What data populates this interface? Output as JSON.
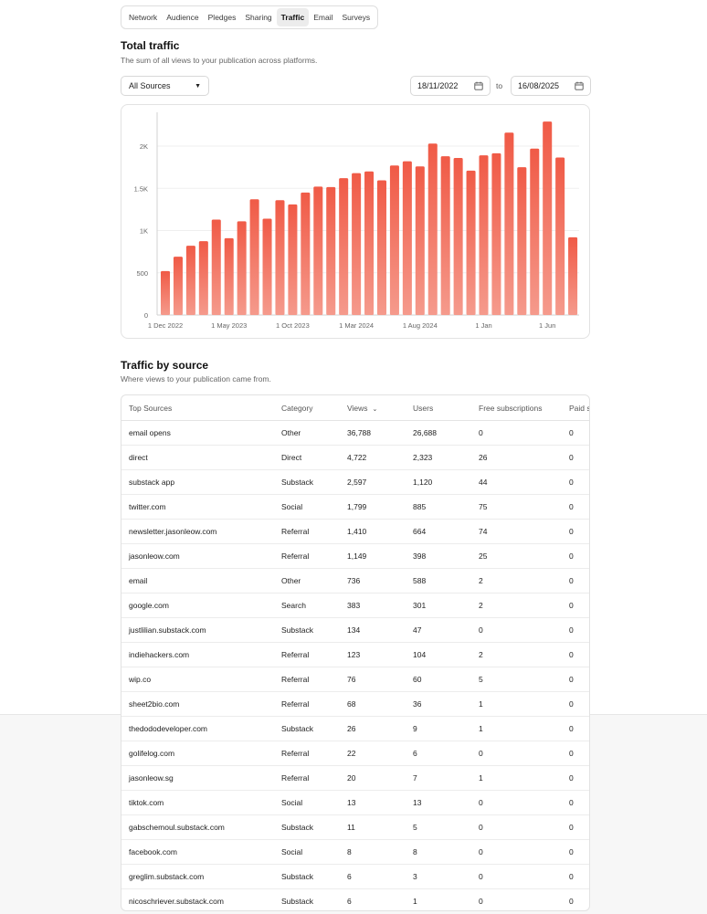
{
  "tabs": [
    {
      "label": "Network",
      "active": false
    },
    {
      "label": "Audience",
      "active": false
    },
    {
      "label": "Pledges",
      "active": false
    },
    {
      "label": "Sharing",
      "active": false
    },
    {
      "label": "Traffic",
      "active": true
    },
    {
      "label": "Email",
      "active": false
    },
    {
      "label": "Surveys",
      "active": false
    }
  ],
  "traffic": {
    "title": "Total traffic",
    "subtitle": "The sum of all views to your publication across platforms."
  },
  "filters": {
    "source_select": "All Sources",
    "date_from": "18/11/2022",
    "to_label": "to",
    "date_to": "16/08/2025"
  },
  "chart_data": {
    "type": "bar",
    "title": "",
    "xlabel": "",
    "ylabel": "",
    "ylim": [
      0,
      2400
    ],
    "y_ticks": [
      0,
      500,
      1000,
      1500,
      2000
    ],
    "y_tick_labels": [
      "0",
      "500",
      "1K",
      "1.5K",
      "2K"
    ],
    "x_tick_labels": [
      {
        "index": 0,
        "label": "1 Dec 2022"
      },
      {
        "index": 5,
        "label": "1 May 2023"
      },
      {
        "index": 10,
        "label": "1 Oct 2023"
      },
      {
        "index": 15,
        "label": "1 Mar 2024"
      },
      {
        "index": 20,
        "label": "1 Aug 2024"
      },
      {
        "index": 25,
        "label": "1 Jan"
      },
      {
        "index": 30,
        "label": "1 Jun"
      }
    ],
    "values": [
      520,
      690,
      820,
      875,
      1130,
      910,
      1110,
      1370,
      1140,
      1360,
      1310,
      1450,
      1520,
      1515,
      1620,
      1680,
      1700,
      1595,
      1770,
      1820,
      1760,
      2030,
      1880,
      1860,
      1710,
      1890,
      1915,
      2160,
      1750,
      1970,
      2290,
      1865,
      920
    ],
    "bar_color_top": "#f05a46",
    "bar_color_bottom": "#f59a8c",
    "grid": true
  },
  "source_section": {
    "title": "Traffic by source",
    "subtitle": "Where views to your publication came from."
  },
  "table": {
    "headers": [
      "Top Sources",
      "Category",
      "Views",
      "Users",
      "Free subscriptions",
      "Paid subscriptions"
    ],
    "rows": [
      [
        "email opens",
        "Other",
        "36,788",
        "26,688",
        "0",
        "0"
      ],
      [
        "direct",
        "Direct",
        "4,722",
        "2,323",
        "26",
        "0"
      ],
      [
        "substack app",
        "Substack",
        "2,597",
        "1,120",
        "44",
        "0"
      ],
      [
        "twitter.com",
        "Social",
        "1,799",
        "885",
        "75",
        "0"
      ],
      [
        "newsletter.jasonleow.com",
        "Referral",
        "1,410",
        "664",
        "74",
        "0"
      ],
      [
        "jasonleow.com",
        "Referral",
        "1,149",
        "398",
        "25",
        "0"
      ],
      [
        "email",
        "Other",
        "736",
        "588",
        "2",
        "0"
      ],
      [
        "google.com",
        "Search",
        "383",
        "301",
        "2",
        "0"
      ],
      [
        "justlilian.substack.com",
        "Substack",
        "134",
        "47",
        "0",
        "0"
      ],
      [
        "indiehackers.com",
        "Referral",
        "123",
        "104",
        "2",
        "0"
      ],
      [
        "wip.co",
        "Referral",
        "76",
        "60",
        "5",
        "0"
      ],
      [
        "sheet2bio.com",
        "Referral",
        "68",
        "36",
        "1",
        "0"
      ],
      [
        "thedododeveloper.com",
        "Substack",
        "26",
        "9",
        "1",
        "0"
      ],
      [
        "golifelog.com",
        "Referral",
        "22",
        "6",
        "0",
        "0"
      ],
      [
        "jasonleow.sg",
        "Referral",
        "20",
        "7",
        "1",
        "0"
      ],
      [
        "tiktok.com",
        "Social",
        "13",
        "13",
        "0",
        "0"
      ],
      [
        "gabschemoul.substack.com",
        "Substack",
        "11",
        "5",
        "0",
        "0"
      ],
      [
        "facebook.com",
        "Social",
        "8",
        "8",
        "0",
        "0"
      ],
      [
        "greglim.substack.com",
        "Substack",
        "6",
        "3",
        "0",
        "0"
      ],
      [
        "nicoschriever.substack.com",
        "Substack",
        "6",
        "1",
        "0",
        "0"
      ]
    ]
  }
}
